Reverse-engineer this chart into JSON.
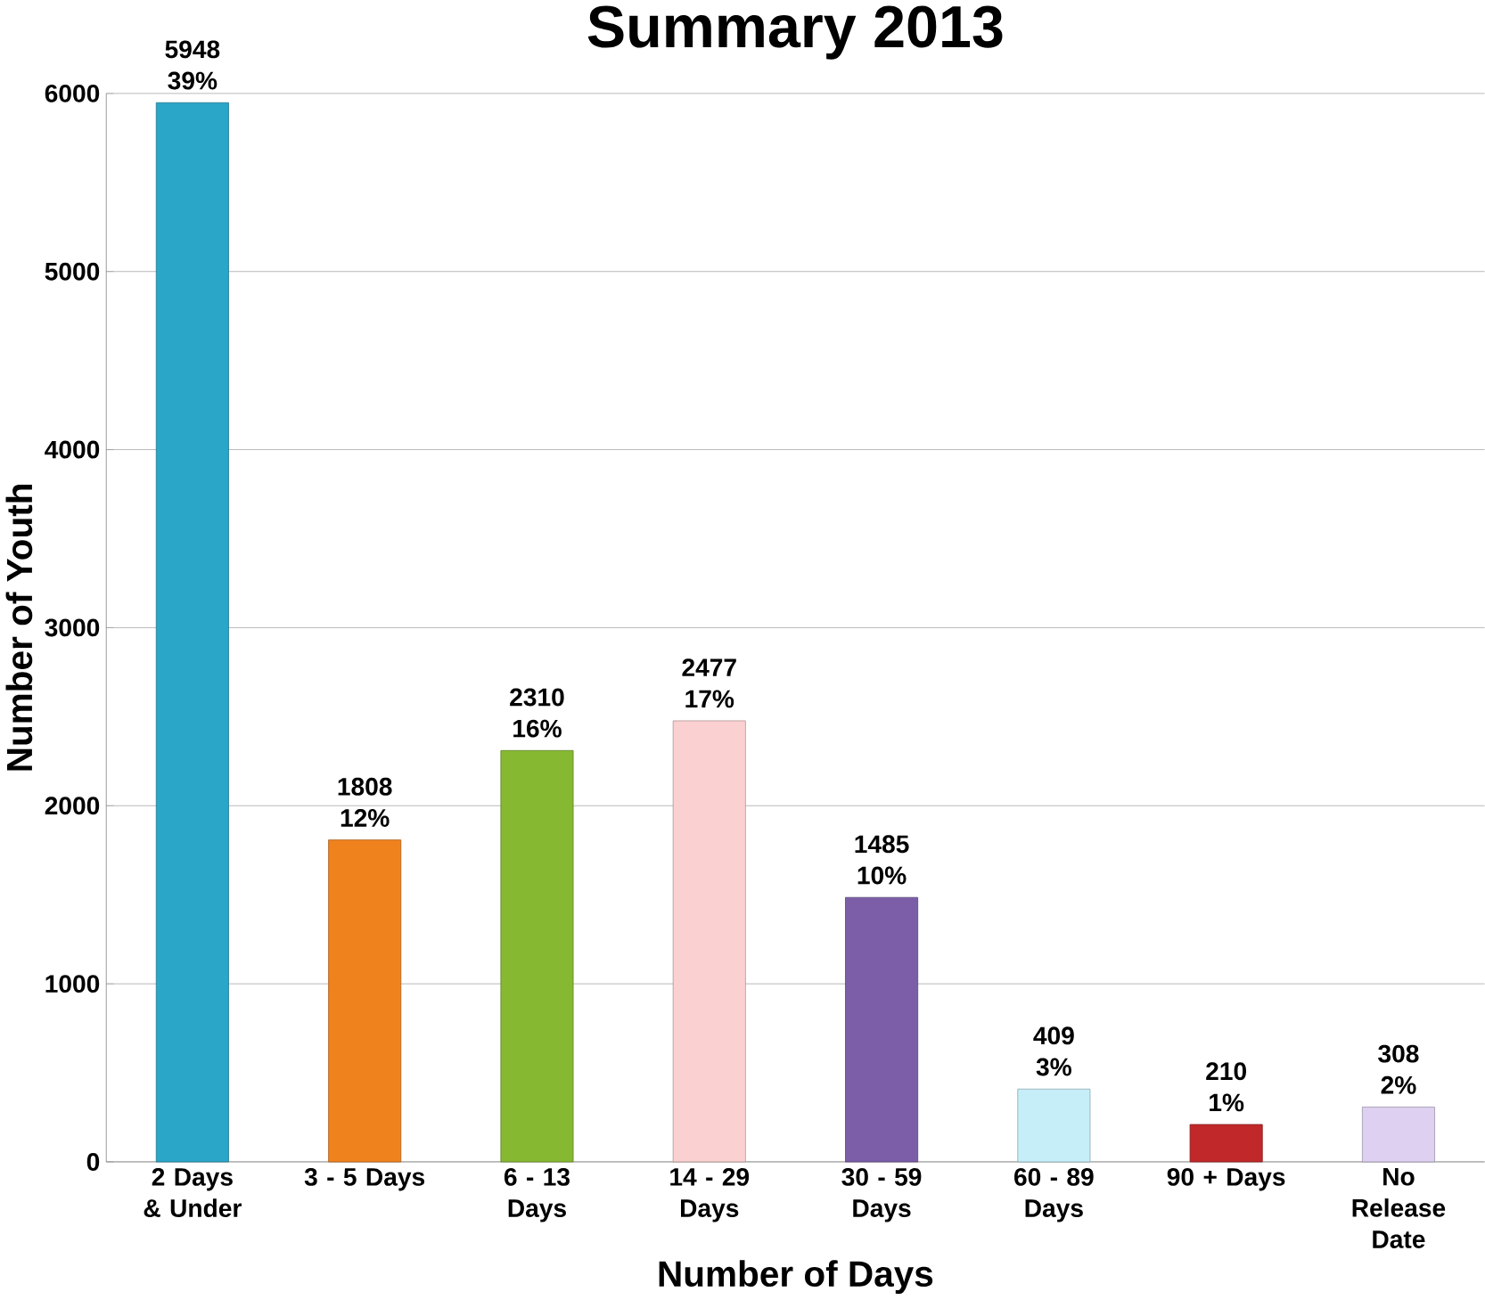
{
  "chart_data": {
    "type": "bar",
    "title": "Summary 2013",
    "xlabel": "Number of Days",
    "ylabel": "Number of Youth",
    "categories": [
      "2 Days & Under",
      "3 - 5 Days",
      "6 - 13 Days",
      "14 - 29 Days",
      "30 - 59 Days",
      "60 - 89 Days",
      "90 + Days",
      "No Release Date"
    ],
    "values": [
      5948,
      1808,
      2310,
      2477,
      1485,
      409,
      210,
      308
    ],
    "value_labels": [
      "5948 39%",
      "1808 12%",
      "2310 16%",
      "2477 17%",
      "1485 10%",
      "409 3%",
      "210 1%",
      "308 2%"
    ],
    "colors": [
      "#2aa6c8",
      "#f0821e",
      "#86b832",
      "#fbd0d0",
      "#7b5ea7",
      "#c6eef9",
      "#c0282a",
      "#ddd0f0"
    ],
    "ylim": [
      0,
      6000
    ],
    "yticks": [
      0,
      1000,
      2000,
      3000,
      4000,
      5000,
      6000
    ],
    "grid": "y"
  }
}
